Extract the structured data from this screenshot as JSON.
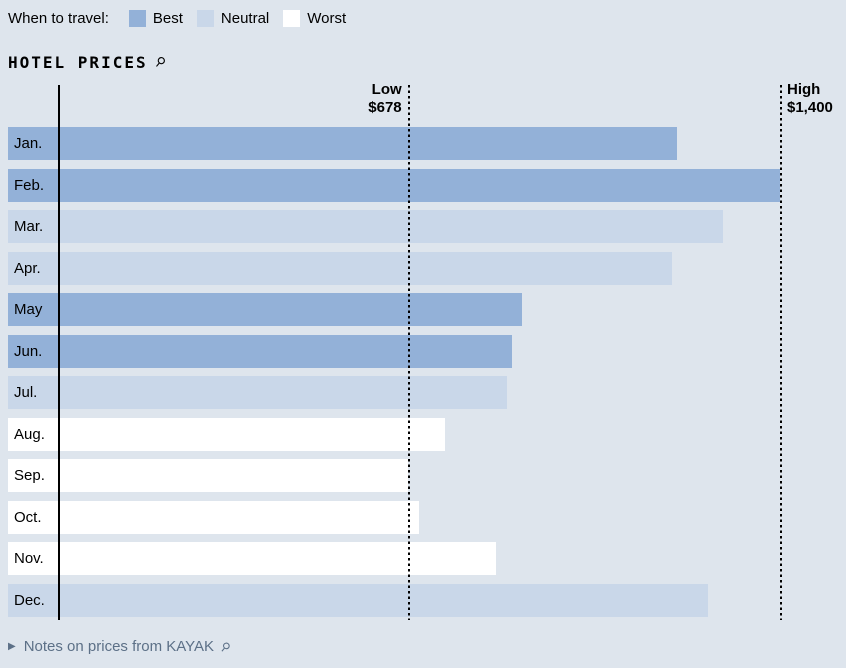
{
  "legend": {
    "label": "When to travel:",
    "items": [
      {
        "label": "Best",
        "color": "#93b1d8"
      },
      {
        "label": "Neutral",
        "color": "#c9d7e9"
      },
      {
        "label": "Worst",
        "color": "#ffffff"
      }
    ]
  },
  "title": {
    "text": "HOTEL PRICES",
    "icon": "⚲"
  },
  "chart_data": {
    "type": "bar",
    "orientation": "horizontal",
    "title": "HOTEL PRICES",
    "categories": [
      "Jan.",
      "Feb.",
      "Mar.",
      "Apr.",
      "May",
      "Jun.",
      "Jul.",
      "Aug.",
      "Sep.",
      "Oct.",
      "Nov.",
      "Dec."
    ],
    "values": [
      1200,
      1400,
      1290,
      1190,
      900,
      880,
      870,
      750,
      678,
      700,
      850,
      1260
    ],
    "ratings": [
      "best",
      "best",
      "neutral",
      "neutral",
      "best",
      "best",
      "neutral",
      "worst",
      "worst",
      "worst",
      "worst",
      "neutral"
    ],
    "xlabel": "",
    "ylabel": "",
    "xlim": [
      0,
      1450
    ],
    "grid": false,
    "legend_position": "top",
    "reference_lines": [
      {
        "name": "low",
        "label": "Low",
        "value": 678,
        "value_label": "$678"
      },
      {
        "name": "high",
        "label": "High",
        "value": 1400,
        "value_label": "$1,400"
      }
    ],
    "colors": {
      "best": "#93b1d8",
      "neutral": "#c9d7e9",
      "worst": "#ffffff"
    }
  },
  "footnote": {
    "arrow": "▶",
    "text": "Notes on prices from KAYAK",
    "icon": "⚲"
  }
}
